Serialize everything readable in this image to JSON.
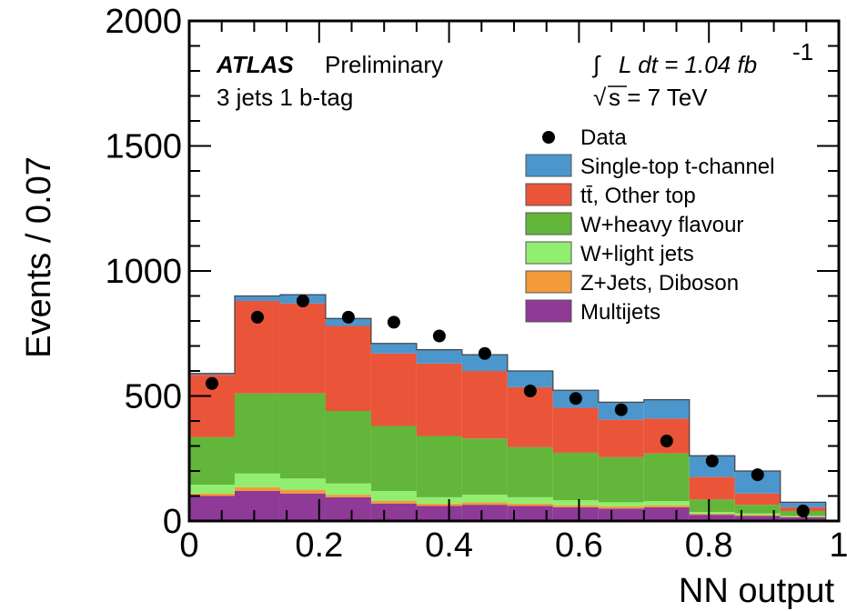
{
  "chart_data": {
    "type": "stacked-histogram",
    "xlabel": "NN output",
    "ylabel": "Events / 0.07",
    "xlim": [
      0,
      1
    ],
    "ylim": [
      0,
      2000
    ],
    "x_ticks": [
      "0",
      "0.2",
      "0.4",
      "0.6",
      "0.8",
      "1"
    ],
    "y_ticks": [
      "0",
      "500",
      "1000",
      "1500",
      "2000"
    ],
    "bin_edges": [
      0,
      0.07,
      0.14,
      0.21,
      0.28,
      0.35,
      0.42,
      0.49,
      0.56,
      0.63,
      0.7,
      0.77,
      0.84,
      0.91,
      0.98
    ],
    "annotations": {
      "atlas": "ATLAS",
      "preliminary": "Preliminary",
      "selection": "3 jets 1 b-tag",
      "lumi": "L dt = 1.04 fb",
      "lumi_exp": "-1",
      "sqrt_s": "s = 7 TeV",
      "integral_symbol": "∫",
      "sqrt_symbol": "√"
    },
    "series": [
      {
        "name": "Multijets",
        "color": "#8e3a96",
        "values": [
          100,
          120,
          110,
          95,
          70,
          60,
          65,
          60,
          55,
          50,
          55,
          25,
          20,
          15
        ]
      },
      {
        "name": "Z+Jets, Diboson",
        "color": "#f39a3a",
        "values": [
          10,
          15,
          15,
          10,
          10,
          10,
          10,
          10,
          8,
          8,
          8,
          4,
          4,
          2
        ]
      },
      {
        "name": "W+light jets",
        "color": "#91ee6f",
        "values": [
          35,
          55,
          45,
          45,
          40,
          25,
          30,
          25,
          20,
          17,
          17,
          7,
          6,
          3
        ]
      },
      {
        "name": "W+heavy flavour",
        "color": "#62b63a",
        "values": [
          190,
          320,
          340,
          290,
          260,
          245,
          225,
          200,
          190,
          180,
          190,
          50,
          35,
          20
        ]
      },
      {
        "name": "tt̄, Other top",
        "color": "#ea5539",
        "values": [
          250,
          370,
          360,
          340,
          290,
          290,
          270,
          240,
          180,
          150,
          140,
          90,
          45,
          15
        ]
      },
      {
        "name": "Single-top t-channel",
        "color": "#4a96cd",
        "values": [
          5,
          20,
          35,
          30,
          40,
          55,
          65,
          65,
          70,
          70,
          75,
          85,
          90,
          20
        ]
      }
    ],
    "data_label": "Data",
    "data_points": {
      "x": [
        0.035,
        0.105,
        0.175,
        0.245,
        0.315,
        0.385,
        0.455,
        0.525,
        0.595,
        0.665,
        0.735,
        0.805,
        0.875,
        0.945
      ],
      "y": [
        550,
        815,
        880,
        815,
        795,
        740,
        670,
        520,
        490,
        445,
        320,
        240,
        185,
        40
      ]
    },
    "legend_position": "upper-right"
  }
}
